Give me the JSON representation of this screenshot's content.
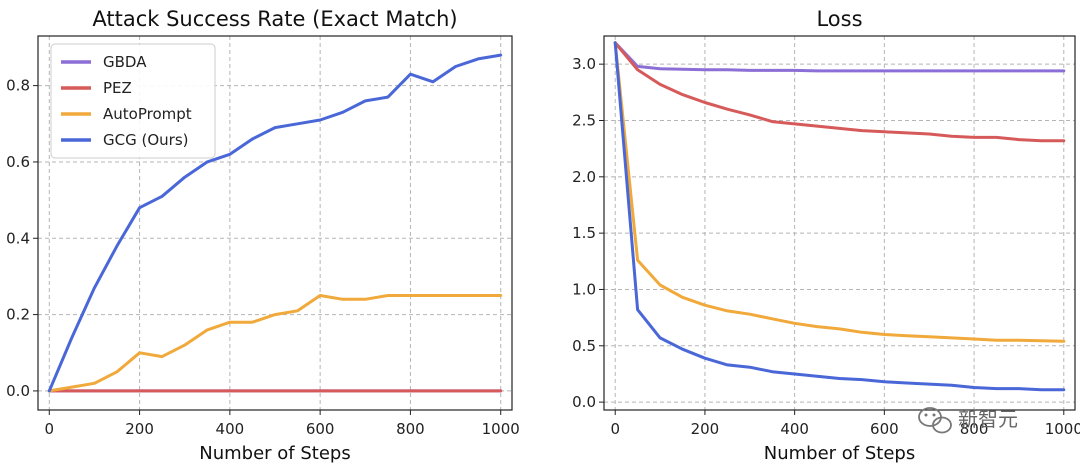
{
  "chart_data": [
    {
      "type": "line",
      "title": "Attack Success Rate (Exact Match)",
      "xlabel": "Number of Steps",
      "ylabel": "",
      "xlim": [
        -25,
        1025
      ],
      "ylim": [
        -0.05,
        0.93
      ],
      "xticks": [
        "0",
        "200",
        "400",
        "600",
        "800",
        "1000"
      ],
      "yticks": [
        "0.0",
        "0.2",
        "0.4",
        "0.6",
        "0.8"
      ],
      "grid": true,
      "legend": "top-left",
      "x": [
        0,
        50,
        100,
        150,
        200,
        250,
        300,
        350,
        400,
        450,
        500,
        550,
        600,
        650,
        700,
        750,
        800,
        850,
        900,
        950,
        1000
      ],
      "series": [
        {
          "name": "GBDA",
          "color": "#8c6fd6",
          "values": [
            0,
            0,
            0,
            0,
            0,
            0,
            0,
            0,
            0,
            0,
            0,
            0,
            0,
            0,
            0,
            0,
            0,
            0,
            0,
            0,
            0
          ]
        },
        {
          "name": "PEZ",
          "color": "#d65a5a",
          "values": [
            0,
            0,
            0,
            0,
            0,
            0,
            0,
            0,
            0,
            0,
            0,
            0,
            0,
            0,
            0,
            0,
            0,
            0,
            0,
            0,
            0
          ]
        },
        {
          "name": "AutoPrompt",
          "color": "#f0a93a",
          "values": [
            0,
            0.01,
            0.02,
            0.05,
            0.1,
            0.09,
            0.12,
            0.16,
            0.18,
            0.18,
            0.2,
            0.21,
            0.25,
            0.24,
            0.24,
            0.25,
            0.25,
            0.25,
            0.25,
            0.25,
            0.25
          ]
        },
        {
          "name": "GCG (Ours)",
          "color": "#4a67d8",
          "values": [
            0,
            0.14,
            0.27,
            0.38,
            0.48,
            0.51,
            0.56,
            0.6,
            0.62,
            0.66,
            0.69,
            0.7,
            0.71,
            0.73,
            0.76,
            0.77,
            0.83,
            0.81,
            0.85,
            0.87,
            0.88
          ]
        }
      ]
    },
    {
      "type": "line",
      "title": "Loss",
      "xlabel": "Number of Steps",
      "ylabel": "",
      "xlim": [
        -25,
        1025
      ],
      "ylim": [
        -0.07,
        3.25
      ],
      "xticks": [
        "0",
        "200",
        "400",
        "600",
        "800",
        "1000"
      ],
      "yticks": [
        "0.0",
        "0.5",
        "1.0",
        "1.5",
        "2.0",
        "2.5",
        "3.0"
      ],
      "grid": true,
      "legend": "none",
      "x": [
        0,
        50,
        100,
        150,
        200,
        250,
        300,
        350,
        400,
        450,
        500,
        550,
        600,
        650,
        700,
        750,
        800,
        850,
        900,
        950,
        1000
      ],
      "series": [
        {
          "name": "GBDA",
          "color": "#8c6fd6",
          "values": [
            3.19,
            2.98,
            2.96,
            2.955,
            2.95,
            2.95,
            2.945,
            2.945,
            2.945,
            2.94,
            2.94,
            2.94,
            2.94,
            2.94,
            2.94,
            2.94,
            2.94,
            2.94,
            2.94,
            2.94,
            2.94
          ]
        },
        {
          "name": "PEZ",
          "color": "#d65a5a",
          "values": [
            3.19,
            2.95,
            2.82,
            2.73,
            2.66,
            2.6,
            2.55,
            2.49,
            2.47,
            2.45,
            2.43,
            2.41,
            2.4,
            2.39,
            2.38,
            2.36,
            2.35,
            2.35,
            2.33,
            2.32,
            2.32
          ]
        },
        {
          "name": "AutoPrompt",
          "color": "#f0a93a",
          "values": [
            3.19,
            1.26,
            1.04,
            0.93,
            0.86,
            0.81,
            0.78,
            0.74,
            0.7,
            0.67,
            0.65,
            0.62,
            0.6,
            0.59,
            0.58,
            0.57,
            0.56,
            0.55,
            0.55,
            0.545,
            0.54
          ]
        },
        {
          "name": "GCG (Ours)",
          "color": "#4a67d8",
          "values": [
            3.19,
            0.82,
            0.57,
            0.47,
            0.39,
            0.33,
            0.31,
            0.27,
            0.25,
            0.23,
            0.21,
            0.2,
            0.18,
            0.17,
            0.16,
            0.15,
            0.13,
            0.12,
            0.12,
            0.11,
            0.11
          ]
        }
      ]
    }
  ],
  "watermark": {
    "text": "新智元",
    "icon": "wechat-logo-icon"
  }
}
